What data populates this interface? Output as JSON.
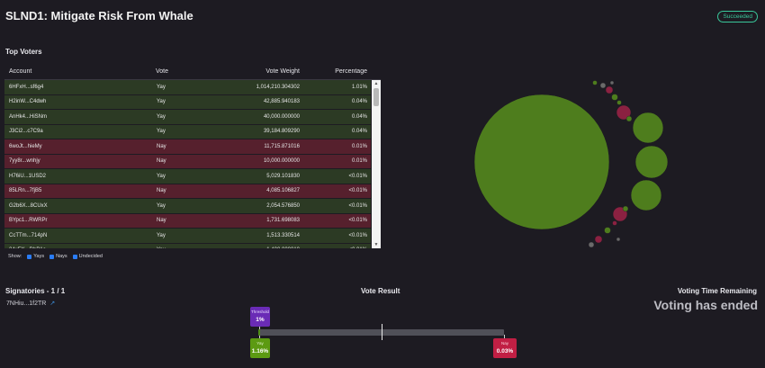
{
  "header": {
    "title": "SLND1: Mitigate Risk From Whale",
    "status": "Succeeded"
  },
  "top_voters": {
    "title": "Top Voters",
    "columns": [
      "Account",
      "Vote",
      "Vote Weight",
      "Percentage"
    ],
    "rows": [
      {
        "account": "6HFxH...sf6g4",
        "vote": "Yay",
        "weight": "1,014,210.304302",
        "pct": "1.01%"
      },
      {
        "account": "H2inW...C4dwh",
        "vote": "Yay",
        "weight": "42,885.940183",
        "pct": "0.04%"
      },
      {
        "account": "AnHk4...HiSNm",
        "vote": "Yay",
        "weight": "40,000.000000",
        "pct": "0.04%"
      },
      {
        "account": "J3Ci2...c7C9a",
        "vote": "Yay",
        "weight": "39,184.809290",
        "pct": "0.04%"
      },
      {
        "account": "6woJt...hieMy",
        "vote": "Nay",
        "weight": "11,715.871016",
        "pct": "0.01%"
      },
      {
        "account": "7yy8r...wnhjy",
        "vote": "Nay",
        "weight": "10,000.000000",
        "pct": "0.01%"
      },
      {
        "account": "H76iU...1USD2",
        "vote": "Yay",
        "weight": "5,029.101830",
        "pct": "<0.01%"
      },
      {
        "account": "85LRn...7fjB5",
        "vote": "Nay",
        "weight": "4,085.106827",
        "pct": "<0.01%"
      },
      {
        "account": "G2b6X...8CUxX",
        "vote": "Yay",
        "weight": "2,054.576850",
        "pct": "<0.01%"
      },
      {
        "account": "BYpc1...RWRPr",
        "vote": "Nay",
        "weight": "1,731.698083",
        "pct": "<0.01%"
      },
      {
        "account": "CcTTm...714pN",
        "vote": "Yay",
        "weight": "1,513.330514",
        "pct": "<0.01%"
      },
      {
        "account": "24xEK...DbB1c",
        "vote": "Yay",
        "weight": "1,400.000010",
        "pct": "<0.01%"
      }
    ]
  },
  "filters": {
    "show_label": "Show:",
    "items": [
      "Yays",
      "Nays",
      "Undecided"
    ]
  },
  "bubble_chart": {
    "colors": {
      "yay": "#4e7d1d",
      "nay": "#8b2141",
      "small": "#6a6a6a"
    },
    "bubbles": [
      {
        "vote": "Yay",
        "label": "6HFxH...sf6g4",
        "value": 1014210.304302
      },
      {
        "vote": "Yay",
        "label": "H2inW...C4dwh",
        "value": 42885.940183
      },
      {
        "vote": "Yay",
        "label": "AnHk4...HiSNm",
        "value": 40000.0
      },
      {
        "vote": "Yay",
        "label": "J3Ci2...c7C9a",
        "value": 39184.80929
      },
      {
        "vote": "Nay",
        "label": "6woJt...hieMy",
        "value": 11715.871016
      },
      {
        "vote": "Nay",
        "label": "7yy8r...wnhjy",
        "value": 10000.0
      }
    ]
  },
  "signatories": {
    "title": "Signatories - 1 / 1",
    "address": "7NHiu...1f2TR"
  },
  "vote_result": {
    "title": "Vote Result",
    "threshold_label": "Threshold",
    "threshold_value": "1%",
    "yay_label": "Yay",
    "yay_value": "1.16%",
    "nay_label": "Nay",
    "nay_value": "0.03%",
    "yay_progress": 0.0116,
    "threshold_progress": 0.01,
    "colors": {
      "yay": "#5c9a12",
      "nay": "#c11f44",
      "threshold": "#6a2bb6"
    }
  },
  "voting_time": {
    "title": "Voting Time Remaining",
    "status": "Voting has ended"
  }
}
